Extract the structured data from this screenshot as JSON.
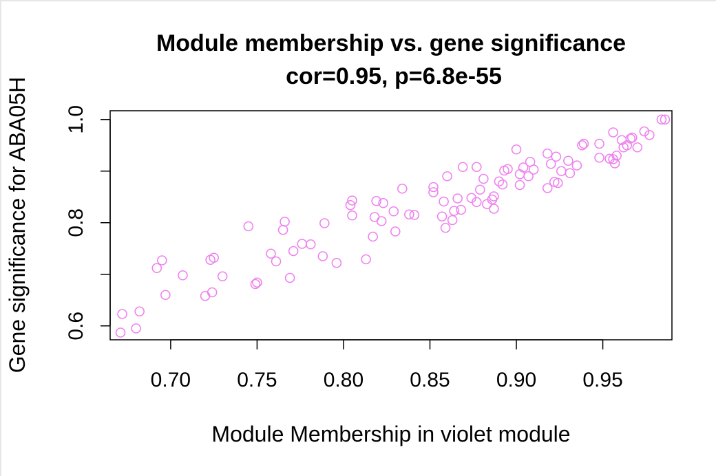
{
  "chart_data": {
    "type": "scatter",
    "title": "Module membership vs. gene significance",
    "subtitle": "cor=0.95, p=6.8e-55",
    "xlabel": "Module Membership in violet module",
    "ylabel": "Gene significance for ABA05H",
    "xlim": [
      0.665,
      0.99
    ],
    "ylim": [
      0.573,
      1.017
    ],
    "x_ticks": [
      "0.70",
      "0.75",
      "0.80",
      "0.85",
      "0.90",
      "0.95"
    ],
    "y_ticks": [
      "0.6",
      "0.8",
      "1.0"
    ],
    "grid": false,
    "point_color": "#ee82ee",
    "points": [
      [
        0.671,
        0.587
      ],
      [
        0.672,
        0.623
      ],
      [
        0.68,
        0.595
      ],
      [
        0.682,
        0.628
      ],
      [
        0.692,
        0.712
      ],
      [
        0.695,
        0.727
      ],
      [
        0.697,
        0.66
      ],
      [
        0.707,
        0.698
      ],
      [
        0.72,
        0.658
      ],
      [
        0.723,
        0.728
      ],
      [
        0.724,
        0.665
      ],
      [
        0.725,
        0.732
      ],
      [
        0.73,
        0.696
      ],
      [
        0.745,
        0.793
      ],
      [
        0.749,
        0.681
      ],
      [
        0.75,
        0.684
      ],
      [
        0.758,
        0.74
      ],
      [
        0.761,
        0.725
      ],
      [
        0.765,
        0.786
      ],
      [
        0.766,
        0.802
      ],
      [
        0.769,
        0.693
      ],
      [
        0.771,
        0.745
      ],
      [
        0.776,
        0.759
      ],
      [
        0.781,
        0.758
      ],
      [
        0.788,
        0.735
      ],
      [
        0.789,
        0.799
      ],
      [
        0.796,
        0.722
      ],
      [
        0.804,
        0.834
      ],
      [
        0.805,
        0.843
      ],
      [
        0.805,
        0.814
      ],
      [
        0.813,
        0.729
      ],
      [
        0.817,
        0.773
      ],
      [
        0.818,
        0.811
      ],
      [
        0.819,
        0.842
      ],
      [
        0.822,
        0.803
      ],
      [
        0.823,
        0.838
      ],
      [
        0.829,
        0.822
      ],
      [
        0.83,
        0.783
      ],
      [
        0.834,
        0.866
      ],
      [
        0.838,
        0.816
      ],
      [
        0.841,
        0.815
      ],
      [
        0.852,
        0.869
      ],
      [
        0.852,
        0.859
      ],
      [
        0.857,
        0.812
      ],
      [
        0.858,
        0.841
      ],
      [
        0.859,
        0.79
      ],
      [
        0.86,
        0.89
      ],
      [
        0.863,
        0.805
      ],
      [
        0.864,
        0.823
      ],
      [
        0.866,
        0.847
      ],
      [
        0.868,
        0.825
      ],
      [
        0.869,
        0.908
      ],
      [
        0.874,
        0.848
      ],
      [
        0.877,
        0.908
      ],
      [
        0.877,
        0.84
      ],
      [
        0.879,
        0.864
      ],
      [
        0.881,
        0.885
      ],
      [
        0.883,
        0.836
      ],
      [
        0.886,
        0.845
      ],
      [
        0.887,
        0.851
      ],
      [
        0.887,
        0.827
      ],
      [
        0.89,
        0.88
      ],
      [
        0.892,
        0.874
      ],
      [
        0.893,
        0.901
      ],
      [
        0.895,
        0.904
      ],
      [
        0.9,
        0.942
      ],
      [
        0.902,
        0.894
      ],
      [
        0.902,
        0.873
      ],
      [
        0.904,
        0.907
      ],
      [
        0.907,
        0.89
      ],
      [
        0.908,
        0.918
      ],
      [
        0.91,
        0.903
      ],
      [
        0.918,
        0.934
      ],
      [
        0.918,
        0.867
      ],
      [
        0.92,
        0.914
      ],
      [
        0.922,
        0.879
      ],
      [
        0.923,
        0.928
      ],
      [
        0.924,
        0.877
      ],
      [
        0.926,
        0.9
      ],
      [
        0.93,
        0.92
      ],
      [
        0.931,
        0.896
      ],
      [
        0.935,
        0.911
      ],
      [
        0.938,
        0.95
      ],
      [
        0.939,
        0.953
      ],
      [
        0.948,
        0.953
      ],
      [
        0.948,
        0.926
      ],
      [
        0.954,
        0.924
      ],
      [
        0.956,
        0.975
      ],
      [
        0.956,
        0.923
      ],
      [
        0.957,
        0.915
      ],
      [
        0.958,
        0.93
      ],
      [
        0.961,
        0.96
      ],
      [
        0.962,
        0.946
      ],
      [
        0.964,
        0.95
      ],
      [
        0.966,
        0.963
      ],
      [
        0.967,
        0.965
      ],
      [
        0.97,
        0.946
      ],
      [
        0.974,
        0.977
      ],
      [
        0.977,
        0.97
      ],
      [
        0.984,
        1.0
      ],
      [
        0.986,
        1.0
      ]
    ]
  }
}
